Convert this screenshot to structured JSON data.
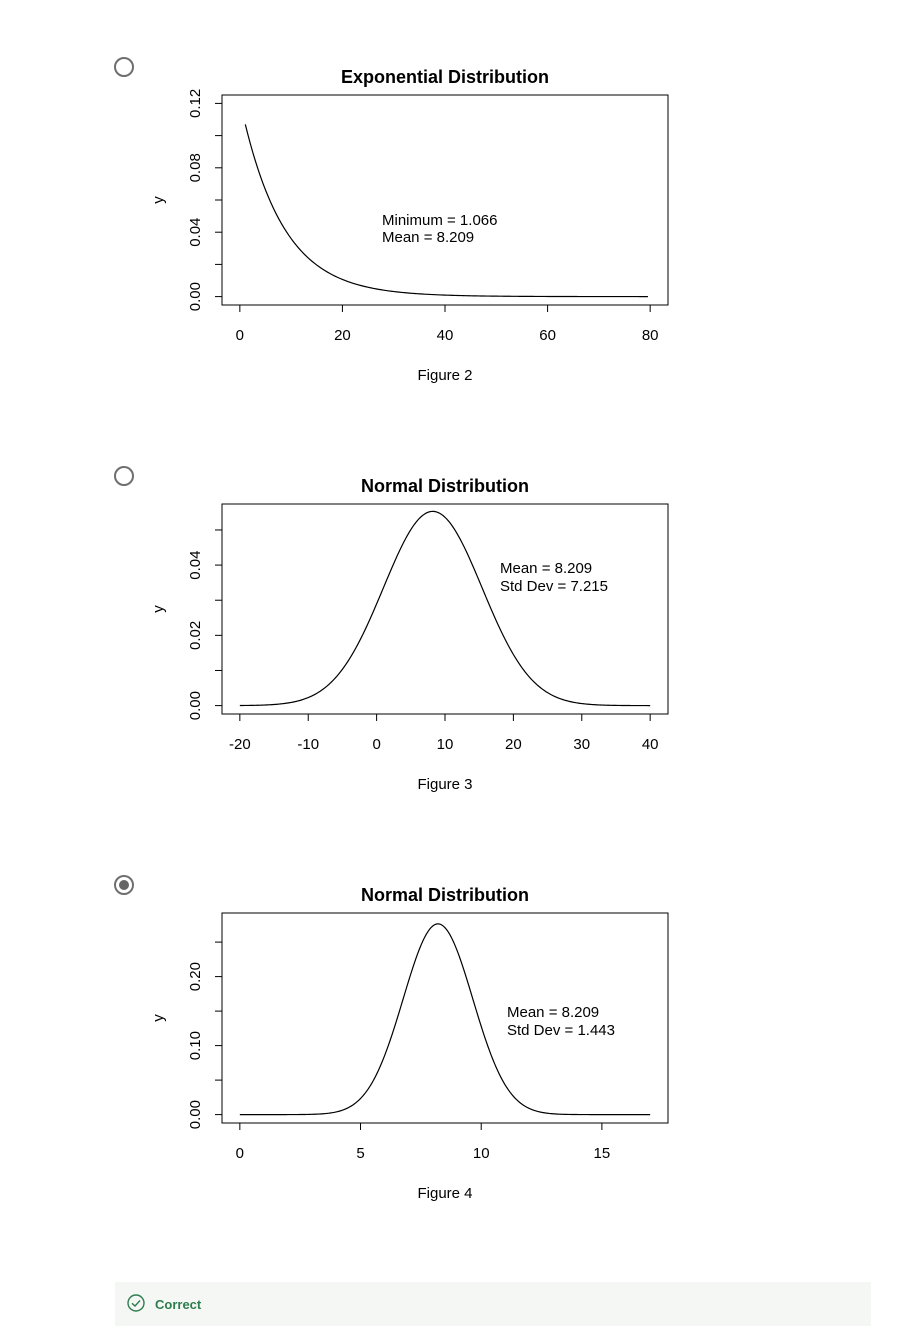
{
  "options": [
    {
      "selected": false,
      "caption": "Figure 2",
      "chart_data": {
        "type": "line",
        "title": "Exponential Distribution",
        "xlabel": "",
        "ylabel": "y",
        "xlim": [
          0,
          80
        ],
        "ylim": [
          0,
          0.12
        ],
        "xticks": [
          "0",
          "20",
          "40",
          "60",
          "80"
        ],
        "yticks": [
          "0.00",
          "0.04",
          "0.08",
          "0.12"
        ],
        "annotations": [
          "Minimum = 1.066",
          "Mean = 8.209"
        ],
        "x": [
          1.066,
          2,
          4,
          6,
          8,
          10,
          12,
          15,
          20,
          25,
          30,
          40,
          50,
          60,
          70,
          80
        ],
        "y": [
          0.1218,
          0.1092,
          0.0856,
          0.0671,
          0.0525,
          0.0412,
          0.0323,
          0.0223,
          0.0114,
          0.0059,
          0.003,
          0.0008,
          0.0002,
          0.0001,
          0.0,
          0.0
        ]
      }
    },
    {
      "selected": false,
      "caption": "Figure 3",
      "chart_data": {
        "type": "line",
        "title": "Normal Distribution",
        "xlabel": "",
        "ylabel": "y",
        "xlim": [
          -20,
          40
        ],
        "ylim": [
          0,
          0.055
        ],
        "xticks": [
          "-20",
          "-10",
          "0",
          "10",
          "20",
          "30",
          "40"
        ],
        "yticks": [
          "0.00",
          "0.02",
          "0.04"
        ],
        "annotations": [
          "Mean = 8.209",
          "Std Dev = 7.215"
        ],
        "distribution": {
          "mean": 8.209,
          "sd": 7.215
        }
      }
    },
    {
      "selected": true,
      "caption": "Figure 4",
      "chart_data": {
        "type": "line",
        "title": "Normal Distribution",
        "xlabel": "",
        "ylabel": "y",
        "xlim": [
          0,
          17
        ],
        "ylim": [
          0,
          0.28
        ],
        "xticks": [
          "0",
          "5",
          "10",
          "15"
        ],
        "yticks": [
          "0.00",
          "0.10",
          "0.20"
        ],
        "annotations": [
          "Mean = 8.209",
          "Std Dev = 1.443"
        ],
        "distribution": {
          "mean": 8.209,
          "sd": 1.443
        }
      }
    }
  ],
  "feedback": {
    "label": "Correct",
    "color": "#2e7d4f",
    "icon": "check-circle-icon"
  }
}
